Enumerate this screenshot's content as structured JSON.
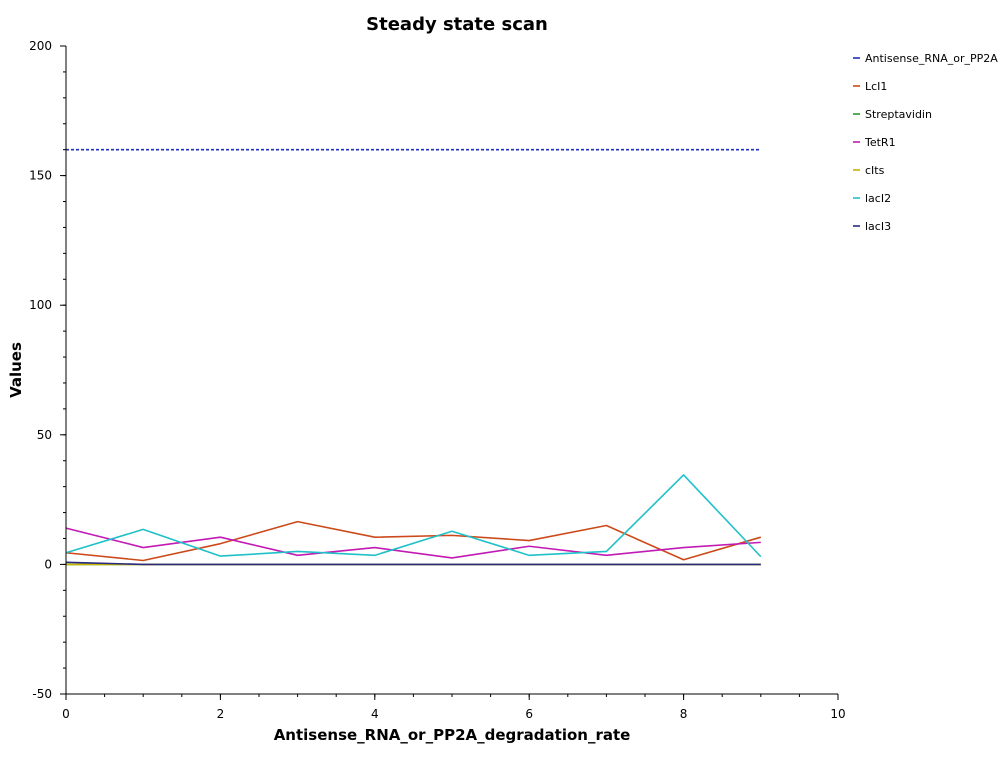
{
  "chart_data": {
    "type": "line",
    "title": "Steady state scan",
    "xlabel": "Antisense_RNA_or_PP2A_degradation_rate",
    "ylabel": "Values",
    "xlim": [
      0,
      10
    ],
    "ylim": [
      -50,
      200
    ],
    "x_major_ticks": [
      0,
      2,
      4,
      6,
      8,
      10
    ],
    "x_minor_step": 0.5,
    "y_major_ticks": [
      -50,
      0,
      50,
      100,
      150,
      200
    ],
    "y_minor_step": 10,
    "grid": false,
    "legend_position": "right",
    "x": [
      0,
      1,
      2,
      3,
      4,
      5,
      6,
      7,
      8,
      9
    ],
    "series": [
      {
        "name": "Antisense_RNA_or_PP2A",
        "color": "#1f2fbf",
        "dashed": true,
        "values": [
          160,
          160,
          160,
          160,
          160,
          160,
          160,
          160,
          160,
          160
        ]
      },
      {
        "name": "LcI1",
        "color": "#cc4a1a",
        "values": [
          4.5,
          1.5,
          8,
          16.5,
          10.5,
          11.2,
          9.2,
          15,
          1.8,
          10.5
        ]
      },
      {
        "name": "Streptavidin",
        "color": "#2e9a2e",
        "values": [
          0,
          0,
          0,
          0,
          0,
          0,
          0,
          0,
          0,
          0
        ]
      },
      {
        "name": "TetR1",
        "color": "#c21ab4",
        "values": [
          14,
          6.5,
          10.5,
          3.5,
          6.5,
          2.5,
          7,
          3.5,
          6.5,
          8.5
        ]
      },
      {
        "name": "cIts",
        "color": "#c8b400",
        "values": [
          0,
          0,
          0,
          0,
          0,
          0,
          0,
          0,
          0,
          0
        ]
      },
      {
        "name": "lacI2",
        "color": "#20c0c8",
        "values": [
          4.5,
          13.5,
          3.2,
          5,
          3.5,
          12.8,
          3.5,
          5,
          34.5,
          3
        ]
      },
      {
        "name": "lacI3",
        "color": "#2a2a80",
        "values": [
          0.8,
          0,
          0,
          0,
          0,
          0,
          0,
          0,
          0,
          0
        ]
      }
    ]
  }
}
